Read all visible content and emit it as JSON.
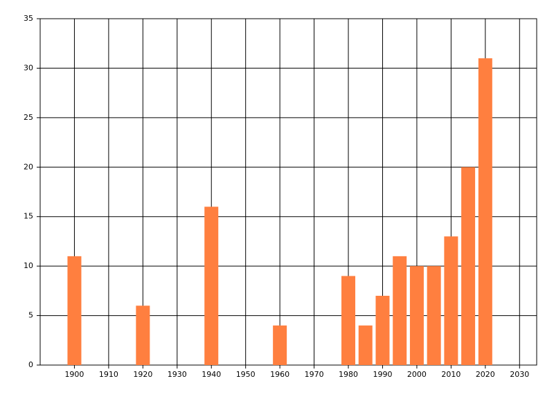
{
  "chart_data": {
    "type": "bar",
    "x": [
      1900,
      1920,
      1940,
      1960,
      1980,
      1985,
      1990,
      1995,
      2000,
      2005,
      2010,
      2015,
      2020
    ],
    "values": [
      11,
      6,
      16,
      4,
      9,
      4,
      7,
      11,
      10,
      10,
      13,
      20,
      31
    ],
    "color": "#ff7f3f",
    "xlim": [
      1890,
      2035
    ],
    "xticks": [
      1900,
      1910,
      1920,
      1930,
      1940,
      1950,
      1960,
      1970,
      1980,
      1990,
      2000,
      2010,
      2020,
      2030
    ],
    "ylim": [
      0,
      35
    ],
    "yticks": [
      0,
      5,
      10,
      15,
      20,
      25,
      30,
      35
    ],
    "grid": true
  }
}
